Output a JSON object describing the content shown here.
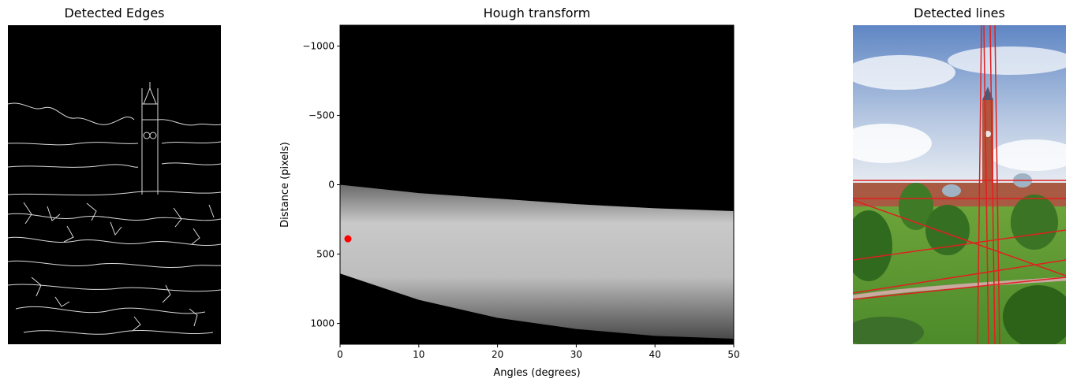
{
  "panels": {
    "edges": {
      "title": "Detected Edges"
    },
    "hough": {
      "title": "Hough transform"
    },
    "lines": {
      "title": "Detected lines"
    }
  },
  "colors": {
    "background": "#ffffff",
    "image_background": "#000000",
    "edge_stroke": "#d9d9d9",
    "hough_band": "#c8c8c8",
    "peak_marker": "#ff0000",
    "detected_line": "#e02020"
  },
  "chart_data": {
    "type": "heatmap",
    "title": "Hough transform",
    "xlabel": "Angles (degrees)",
    "ylabel": "Distance (pixels)",
    "xlim": [
      0,
      50
    ],
    "ylim": [
      1150,
      -1150
    ],
    "y_inverted": true,
    "grid": false,
    "x_ticks": [
      0,
      10,
      20,
      30,
      40,
      50
    ],
    "x_tick_labels": [
      "0",
      "10",
      "20",
      "30",
      "40",
      "50"
    ],
    "y_ticks": [
      -1000,
      -500,
      0,
      500,
      1000
    ],
    "y_tick_labels": [
      "−1000",
      "−500",
      "0",
      "500",
      "1000"
    ],
    "colormap": "gray",
    "accumulator_band": {
      "angles": [
        0,
        10,
        20,
        30,
        40,
        50
      ],
      "upper_distance": [
        0,
        60,
        100,
        140,
        170,
        190
      ],
      "lower_distance": [
        640,
        830,
        960,
        1040,
        1090,
        1110
      ]
    },
    "peak": {
      "angle": 1,
      "distance": 390,
      "color": "#ff0000"
    }
  }
}
